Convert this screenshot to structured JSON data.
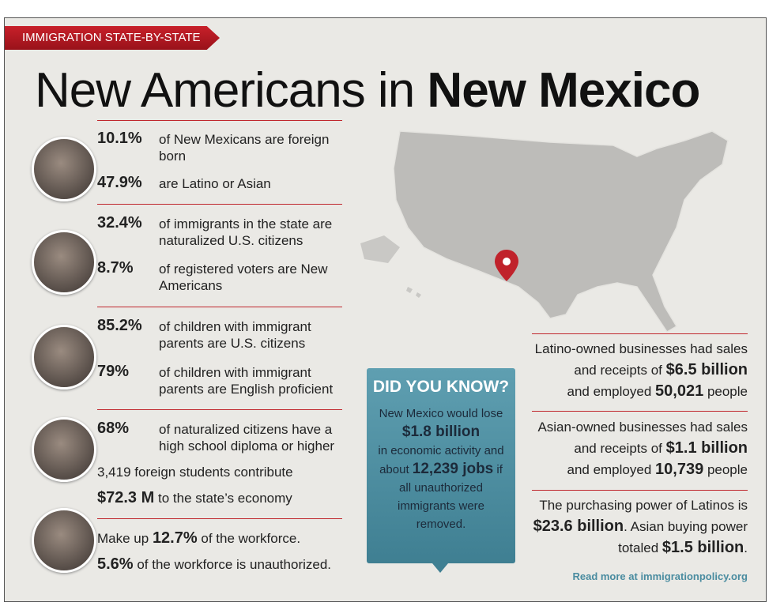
{
  "banner": "IMMIGRATION STATE-BY-STATE",
  "title": {
    "light": "New Americans in",
    "bold": "New Mexico"
  },
  "left": [
    {
      "items": [
        {
          "value": "10.1%",
          "text": "of New Mexicans are foreign born"
        },
        {
          "value": "47.9%",
          "text": "are Latino or Asian"
        }
      ]
    },
    {
      "items": [
        {
          "value": "32.4%",
          "text": "of immigrants in the state are naturalized U.S. citizens"
        },
        {
          "value": "8.7%",
          "text": "of registered voters are New Americans"
        }
      ]
    },
    {
      "items": [
        {
          "value": "85.2%",
          "text": "of children with immigrant parents are U.S. citizens"
        },
        {
          "value": "79%",
          "text": "of children with immigrant parents are English proficient"
        }
      ]
    },
    {
      "items": [
        {
          "value": "68%",
          "text": "of naturalized citizens have a high school diploma or higher"
        }
      ],
      "extra": "3,419 foreign students contribute",
      "money": {
        "value": "$72.3 M",
        "text": "to the state’s economy"
      }
    },
    {
      "workforce": {
        "before": "Make up",
        "value": "12.7%",
        "after": "of the workforce."
      },
      "unauthorized": {
        "value": "5.6%",
        "text": "of the workforce is unauthorized."
      }
    }
  ],
  "did_you_know": {
    "heading": "DID YOU KNOW?",
    "part1": "New Mexico would lose",
    "amount": "$1.8 billion",
    "part2": "in economic activity and about",
    "jobs": "12,239 jobs",
    "part3": "if all unauthorized immigrants were removed."
  },
  "right": [
    {
      "a": "Latino-owned businesses had sales and receipts of",
      "b": "$6.5 billion",
      "c": "and employed",
      "d": "50,021",
      "e": "people"
    },
    {
      "a": "Asian-owned businesses had sales and receipts of",
      "b": "$1.1 billion",
      "c": "and employed",
      "d": "10,739",
      "e": "people"
    },
    {
      "a": "The purchasing power of Latinos is",
      "b": "$23.6 billion",
      "c": ". Asian buying power totaled",
      "d": "$1.5 billion",
      "e": "."
    }
  ],
  "footer": "Read more at immigrationpolicy.org"
}
